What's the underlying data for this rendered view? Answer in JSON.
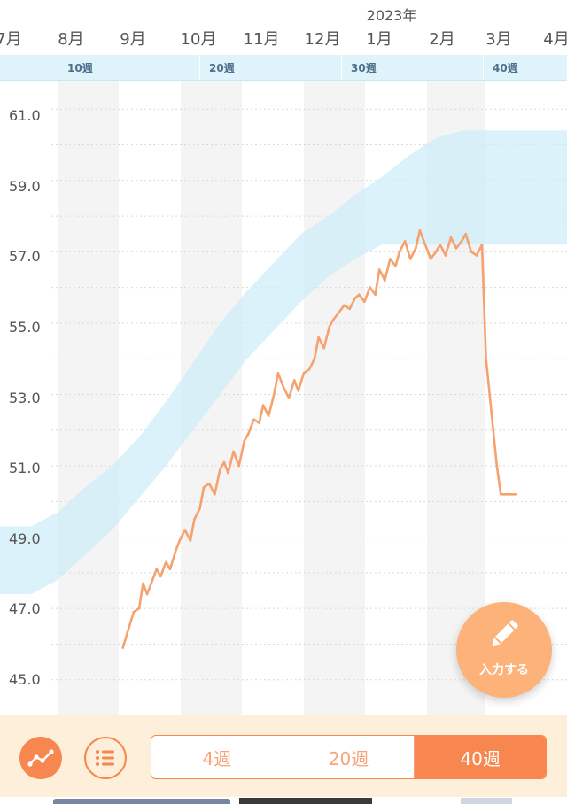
{
  "timeline": {
    "year_label": "2023年",
    "months": [
      "7月",
      "8月",
      "9月",
      "10月",
      "11月",
      "12月",
      "1月",
      "2月",
      "3月",
      "4月"
    ],
    "weeks": [
      "10週",
      "20週",
      "30週",
      "40週"
    ]
  },
  "chart_data": {
    "type": "line",
    "title": "",
    "xlabel": "",
    "ylabel": "",
    "ylim": [
      44.0,
      61.8
    ],
    "y_ticks": [
      "61.0",
      "59.0",
      "57.0",
      "55.0",
      "53.0",
      "51.0",
      "49.0",
      "47.0",
      "45.0"
    ],
    "x_unit": "pregnancy_week",
    "xlim": [
      2.7,
      44.7
    ],
    "grid": true,
    "series": [
      {
        "kind": "measured-weight",
        "color": "#f5a26f",
        "x": [
          11.8,
          12.2,
          12.6,
          13.0,
          13.3,
          13.6,
          14.0,
          14.3,
          14.6,
          15.0,
          15.3,
          15.7,
          16.0,
          16.4,
          16.8,
          17.1,
          17.5,
          17.8,
          18.2,
          18.6,
          19.0,
          19.3,
          19.6,
          20.0,
          20.4,
          20.8,
          21.1,
          21.5,
          21.9,
          22.2,
          22.6,
          23.0,
          23.3,
          23.7,
          24.1,
          24.5,
          24.8,
          25.2,
          25.6,
          26.0,
          26.3,
          26.7,
          27.1,
          27.4,
          27.8,
          28.2,
          28.6,
          29.0,
          29.3,
          29.7,
          30.1,
          30.5,
          30.8,
          31.2,
          31.6,
          32.0,
          32.3,
          32.7,
          33.1,
          33.5,
          33.8,
          34.2,
          34.6,
          35.0,
          35.3,
          35.7,
          36.1,
          36.5,
          36.9,
          37.2,
          37.6,
          38.0,
          38.4,
          38.7,
          39.1,
          39.5,
          39.8,
          40.2,
          40.6,
          40.9
        ],
        "y": [
          45.9,
          46.4,
          46.9,
          47.0,
          47.7,
          47.4,
          47.8,
          48.1,
          47.9,
          48.3,
          48.1,
          48.6,
          48.9,
          49.2,
          48.9,
          49.5,
          49.8,
          50.4,
          50.5,
          50.2,
          50.9,
          51.1,
          50.8,
          51.4,
          51.0,
          51.7,
          51.9,
          52.3,
          52.2,
          52.7,
          52.4,
          53.0,
          53.6,
          53.2,
          52.9,
          53.4,
          53.1,
          53.6,
          53.7,
          54.0,
          54.6,
          54.3,
          54.9,
          55.1,
          55.3,
          55.5,
          55.4,
          55.7,
          55.8,
          55.6,
          56.0,
          55.8,
          56.5,
          56.2,
          56.8,
          56.6,
          57.0,
          57.3,
          56.8,
          57.1,
          57.6,
          57.2,
          56.8,
          57.0,
          57.2,
          56.9,
          57.4,
          57.1,
          57.3,
          57.5,
          57.0,
          56.9,
          57.2,
          54.0,
          52.5,
          51.0,
          50.2,
          50.2,
          50.2,
          50.2
        ]
      }
    ],
    "recommended_band": {
      "color": "#cfeef8",
      "x": [
        2.7,
        5.0,
        7.0,
        9.0,
        11.0,
        13.0,
        15.0,
        17.0,
        19.0,
        21.0,
        23.0,
        25.0,
        27.0,
        29.0,
        31.0,
        33.0,
        35.0,
        37.0,
        39.0,
        40.5,
        44.7
      ],
      "upper": [
        49.3,
        49.3,
        49.7,
        50.4,
        51.0,
        51.8,
        52.8,
        53.9,
        55.0,
        55.9,
        56.7,
        57.5,
        58.0,
        58.6,
        59.1,
        59.7,
        60.2,
        60.4,
        60.4,
        60.4,
        60.4
      ],
      "lower": [
        47.4,
        47.4,
        47.8,
        48.5,
        49.2,
        50.1,
        51.0,
        52.0,
        53.0,
        54.0,
        54.8,
        55.6,
        56.3,
        56.8,
        57.2,
        57.2,
        57.2,
        57.2,
        57.2,
        57.2,
        57.2
      ]
    }
  },
  "fab": {
    "label": "入力する",
    "icon": "pencil-icon"
  },
  "bottom_bar": {
    "graph_icon": "line-graph-icon",
    "list_icon": "list-icon",
    "range_options": [
      "4週",
      "20週",
      "40週"
    ],
    "selected_range": "40週",
    "accent_color": "#f8874f"
  }
}
